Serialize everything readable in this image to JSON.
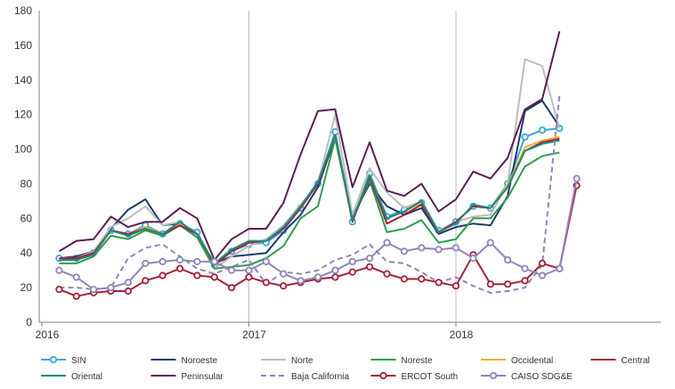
{
  "chart_data": {
    "type": "line",
    "x_start": "2016-02",
    "x_axis_labels": [
      "2016",
      "2017",
      "2018"
    ],
    "ylim": [
      0,
      180
    ],
    "yticks": [
      0,
      20,
      40,
      60,
      80,
      100,
      120,
      140,
      160,
      180
    ],
    "grid": "vertical lines at year boundaries only",
    "legend_position": "bottom",
    "series": [
      {
        "name": "SIN",
        "color": "#3DA5DE",
        "dash": false,
        "marker": true,
        "values": [
          37,
          37,
          40,
          53,
          51,
          56,
          51,
          57,
          52,
          33,
          41,
          45,
          46,
          53,
          66,
          80,
          110,
          58,
          86,
          61,
          65,
          69,
          53,
          58,
          67,
          66,
          80,
          107,
          111,
          112
        ]
      },
      {
        "name": "Noroeste",
        "color": "#1F3A6E",
        "dash": false,
        "marker": false,
        "values": [
          37,
          38,
          41,
          54,
          65,
          71,
          56,
          57,
          50,
          34,
          38,
          39,
          40,
          52,
          62,
          78,
          107,
          61,
          80,
          67,
          62,
          66,
          51,
          55,
          57,
          56,
          73,
          122,
          128,
          113
        ]
      },
      {
        "name": "Norte",
        "color": "#BDBDBD",
        "dash": false,
        "marker": false,
        "values": [
          36,
          37,
          41,
          55,
          60,
          67,
          56,
          58,
          50,
          31,
          38,
          44,
          48,
          56,
          68,
          80,
          120,
          62,
          89,
          75,
          66,
          70,
          53,
          58,
          61,
          62,
          80,
          152,
          148,
          112
        ]
      },
      {
        "name": "Noreste",
        "color": "#2E9E4F",
        "dash": false,
        "marker": false,
        "values": [
          34,
          34,
          38,
          50,
          48,
          53,
          50,
          56,
          49,
          31,
          32,
          33,
          37,
          44,
          60,
          67,
          106,
          59,
          82,
          52,
          54,
          59,
          46,
          48,
          60,
          60,
          72,
          90,
          96,
          98
        ]
      },
      {
        "name": "Occidental",
        "color": "#E8B32F",
        "dash": false,
        "marker": false,
        "values": [
          37,
          37,
          40,
          53,
          51,
          55,
          51,
          57,
          51,
          33,
          41,
          46,
          47,
          54,
          66,
          81,
          108,
          58,
          85,
          60,
          64,
          69,
          52,
          58,
          67,
          66,
          79,
          101,
          105,
          107
        ]
      },
      {
        "name": "Central",
        "color": "#A3213A",
        "dash": false,
        "marker": false,
        "values": [
          37,
          37,
          40,
          53,
          51,
          54,
          51,
          56,
          51,
          33,
          41,
          46,
          47,
          54,
          66,
          80,
          108,
          58,
          84,
          57,
          62,
          68,
          52,
          58,
          67,
          66,
          78,
          99,
          104,
          106
        ]
      },
      {
        "name": "Oriental",
        "color": "#1E8C7A",
        "dash": false,
        "marker": false,
        "values": [
          36,
          36,
          39,
          53,
          50,
          54,
          51,
          58,
          51,
          34,
          42,
          47,
          47,
          55,
          67,
          81,
          108,
          59,
          85,
          60,
          64,
          70,
          52,
          57,
          68,
          66,
          78,
          99,
          103,
          105
        ]
      },
      {
        "name": "Peninsular",
        "color": "#5A1F4F",
        "dash": false,
        "marker": false,
        "values": [
          41,
          47,
          48,
          61,
          55,
          58,
          58,
          66,
          60,
          36,
          48,
          54,
          54,
          69,
          97,
          122,
          123,
          78,
          104,
          76,
          73,
          80,
          64,
          71,
          87,
          83,
          95,
          123,
          129,
          168
        ]
      },
      {
        "name": "Baja California",
        "color": "#8E86B8",
        "dash": true,
        "marker": false,
        "values": [
          20,
          20,
          19,
          20,
          37,
          43,
          45,
          38,
          31,
          28,
          32,
          36,
          22,
          29,
          28,
          30,
          36,
          39,
          45,
          35,
          34,
          29,
          23,
          26,
          21,
          17,
          18,
          20,
          33,
          131
        ]
      },
      {
        "name": "ERCOT South",
        "color": "#A3213A",
        "dash": false,
        "marker": true,
        "values": [
          19,
          15,
          17,
          18,
          18,
          24,
          27,
          31,
          27,
          26,
          20,
          26,
          23,
          21,
          23,
          25,
          26,
          29,
          32,
          28,
          25,
          25,
          23,
          21,
          39,
          22,
          22,
          24,
          34,
          31,
          79
        ]
      },
      {
        "name": "CAISO SDG&E",
        "color": "#8E86B8",
        "dash": false,
        "marker": true,
        "values": [
          30,
          26,
          19,
          20,
          23,
          34,
          35,
          36,
          35,
          35,
          30,
          30,
          35,
          28,
          24,
          26,
          30,
          35,
          37,
          46,
          41,
          43,
          42,
          43,
          37,
          46,
          36,
          31,
          27,
          31,
          83
        ]
      }
    ]
  }
}
